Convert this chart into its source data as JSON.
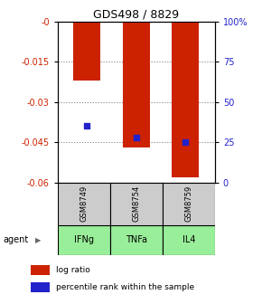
{
  "title": "GDS498 / 8829",
  "categories": [
    "IFNg",
    "TNFa",
    "IL4"
  ],
  "sample_labels": [
    "GSM8749",
    "GSM8754",
    "GSM8759"
  ],
  "log_ratios": [
    -0.022,
    -0.047,
    -0.058
  ],
  "percentile_ranks": [
    35,
    28,
    25
  ],
  "ylim_left": [
    -0.06,
    0
  ],
  "ylim_right": [
    0,
    100
  ],
  "yticks_left": [
    0,
    -0.015,
    -0.03,
    -0.045,
    -0.06
  ],
  "ytick_labels_left": [
    "-0",
    "-0.015",
    "-0.03",
    "-0.045",
    "-0.06"
  ],
  "yticks_right": [
    0,
    25,
    50,
    75,
    100
  ],
  "ytick_labels_right": [
    "0",
    "25",
    "50",
    "75",
    "100%"
  ],
  "bar_color": "#cc2200",
  "marker_color": "#2222cc",
  "agent_bg_color": "#99ee99",
  "sample_bg_color": "#cccccc",
  "legend_bar_label": "log ratio",
  "legend_marker_label": "percentile rank within the sample",
  "agent_label": "agent",
  "bar_width": 0.55
}
